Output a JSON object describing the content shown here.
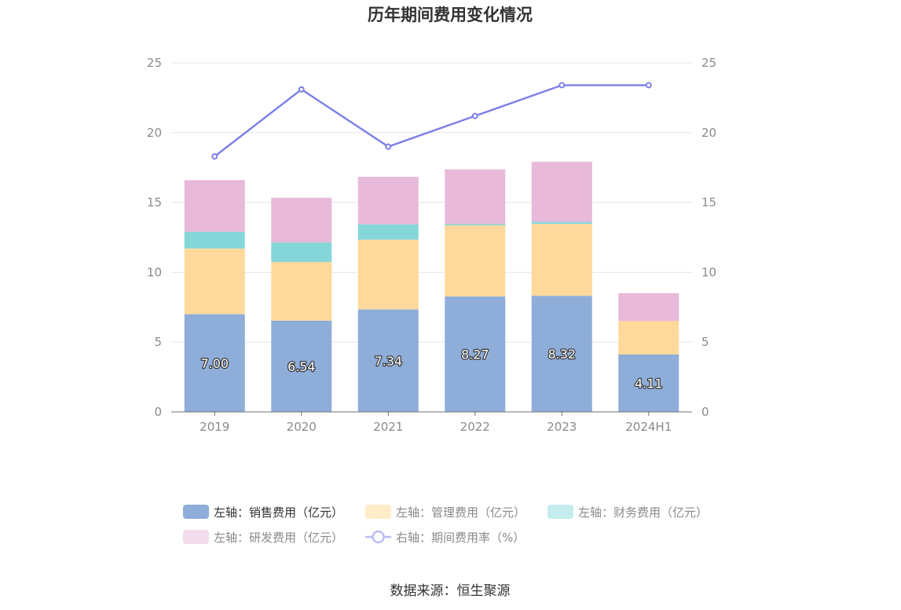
{
  "chart_data": {
    "type": "bar",
    "stacked": true,
    "title": "历年期间费用变化情况",
    "categories": [
      "2019",
      "2020",
      "2021",
      "2022",
      "2023",
      "2024H1"
    ],
    "series": [
      {
        "name": "左轴：销售费用（亿元）",
        "axis": "left",
        "color": "#8eadd9",
        "values": [
          7.0,
          6.54,
          7.34,
          8.27,
          8.32,
          4.11
        ],
        "labels": [
          "7.00",
          "6.54",
          "7.34",
          "8.27",
          "8.32",
          "4.11"
        ]
      },
      {
        "name": "左轴：管理费用（亿元）",
        "axis": "left",
        "color": "#ffd99b",
        "values": [
          4.7,
          4.2,
          5.0,
          5.1,
          5.15,
          2.4
        ]
      },
      {
        "name": "左轴：财务费用（亿元）",
        "axis": "left",
        "color": "#85d6d9",
        "values": [
          1.2,
          1.4,
          1.1,
          0.1,
          0.15,
          0.0
        ]
      },
      {
        "name": "左轴：研发费用（亿元）",
        "axis": "left",
        "color": "#e8b9d9",
        "values": [
          3.7,
          3.2,
          3.4,
          3.9,
          4.3,
          2.0
        ]
      },
      {
        "name": "右轴：期间费用率（%）",
        "axis": "right",
        "type": "line",
        "color": "#7b7fe8",
        "values": [
          18.3,
          23.1,
          19.0,
          21.2,
          23.4,
          23.4
        ]
      }
    ],
    "yLeft": {
      "min": 0,
      "max": 25,
      "ticks": [
        "0",
        "5",
        "10",
        "15",
        "20",
        "25"
      ]
    },
    "yRight": {
      "min": 0,
      "max": 25,
      "ticks": [
        "0",
        "5",
        "10",
        "15",
        "20",
        "25"
      ]
    },
    "grid": true,
    "legend_position": "bottom"
  },
  "legend": [
    {
      "label": "左轴：销售费用（亿元）",
      "color": "#8eadd9",
      "icon": "rect",
      "dim": false
    },
    {
      "label": "左轴：管理费用（亿元）",
      "color": "#ffecc9",
      "icon": "rect",
      "dim": true
    },
    {
      "label": "左轴：财务费用（亿元）",
      "color": "#c4ecee",
      "icon": "rect",
      "dim": true
    },
    {
      "label": "左轴：研发费用（亿元）",
      "color": "#f3dcec",
      "icon": "rect",
      "dim": true
    },
    {
      "label": "右轴：期间费用率（%）",
      "color": "#b8baf2",
      "icon": "line",
      "dim": true
    }
  ],
  "source": "数据来源：恒生聚源"
}
